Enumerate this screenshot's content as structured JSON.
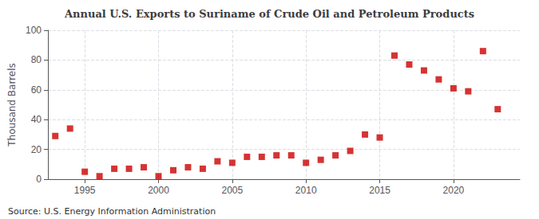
{
  "chart_data": {
    "type": "scatter",
    "title": "Annual U.S. Exports to Suriname of Crude Oil and Petroleum Products",
    "ylabel": "Thousand Barrels",
    "annotations": [
      "Source: U.S. Energy Information Administration"
    ],
    "x": [
      1993,
      1994,
      1995,
      1996,
      1997,
      1998,
      1999,
      2000,
      2001,
      2002,
      2003,
      2004,
      2005,
      2006,
      2007,
      2008,
      2009,
      2010,
      2011,
      2012,
      2013,
      2014,
      2015,
      2016,
      2017,
      2018,
      2019,
      2020,
      2021,
      2022,
      2023
    ],
    "values": [
      29,
      34,
      5,
      2,
      7,
      7,
      8,
      2,
      6,
      8,
      7,
      12,
      11,
      15,
      15,
      16,
      16,
      11,
      13,
      16,
      19,
      30,
      28,
      83,
      77,
      73,
      67,
      61,
      59,
      86,
      47
    ],
    "color": "#cc0000",
    "marker": "square",
    "xlim": [
      1992.5,
      2024.5
    ],
    "xticks": [
      1995,
      2000,
      2005,
      2010,
      2015,
      2020
    ],
    "ylim": [
      0,
      100
    ],
    "yticks": [
      0,
      20,
      40,
      60,
      80,
      100
    ],
    "grid": true
  }
}
